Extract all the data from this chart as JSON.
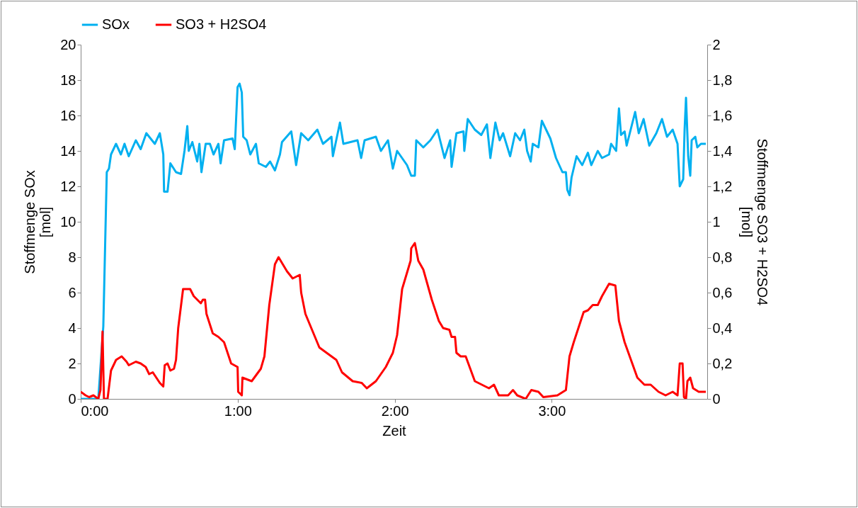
{
  "chart_data": {
    "type": "line",
    "xlabel": "Zeit",
    "ylabel": "Stoffmenge   SOx\n[mol]",
    "y2label": "Stoffmenge   SO3 + H2SO4\n[mol]",
    "legend": "top",
    "grid": false,
    "xlim": [
      0,
      3.99
    ],
    "xticks": [
      {
        "value": 0,
        "label": "0:00"
      },
      {
        "value": 1,
        "label": "1:00"
      },
      {
        "value": 2,
        "label": "2:00"
      },
      {
        "value": 3,
        "label": "3:00"
      }
    ],
    "ylim": [
      0,
      20
    ],
    "yticks": [
      0,
      2,
      4,
      6,
      8,
      10,
      12,
      14,
      16,
      18,
      20
    ],
    "y2lim": [
      0,
      2
    ],
    "y2ticks": [
      0,
      {
        "value": 0.2,
        "label": "0,2"
      },
      {
        "value": 0.4,
        "label": "0,4"
      },
      {
        "value": 0.6,
        "label": "0,6"
      },
      {
        "value": 0.8,
        "label": "0,8"
      },
      1,
      {
        "value": 1.2,
        "label": "1,2"
      },
      {
        "value": 1.4,
        "label": "1,4"
      },
      {
        "value": 1.6,
        "label": "1,6"
      },
      {
        "value": 1.8,
        "label": "1,8"
      },
      2
    ],
    "series": [
      {
        "name": "SOx",
        "color": "#00b0f0",
        "x": [
          0,
          0.112,
          0.144,
          0.166,
          0.18,
          0.193,
          0.225,
          0.256,
          0.279,
          0.306,
          0.351,
          0.382,
          0.418,
          0.472,
          0.504,
          0.526,
          0.531,
          0.553,
          0.571,
          0.607,
          0.639,
          0.661,
          0.679,
          0.688,
          0.711,
          0.742,
          0.756,
          0.769,
          0.796,
          0.823,
          0.846,
          0.877,
          0.891,
          0.913,
          0.967,
          0.981,
          0.999,
          1.012,
          1.026,
          1.035,
          1.057,
          1.08,
          1.116,
          1.134,
          1.179,
          1.206,
          1.237,
          1.269,
          1.282,
          1.341,
          1.372,
          1.404,
          1.449,
          1.507,
          1.543,
          1.597,
          1.606,
          1.651,
          1.673,
          1.763,
          1.786,
          1.808,
          1.88,
          1.912,
          1.957,
          1.988,
          2.015,
          2.078,
          2.105,
          2.128,
          2.137,
          2.182,
          2.227,
          2.272,
          2.317,
          2.353,
          2.362,
          2.393,
          2.438,
          2.443,
          2.465,
          2.51,
          2.551,
          2.587,
          2.609,
          2.641,
          2.668,
          2.69,
          2.735,
          2.767,
          2.798,
          2.825,
          2.843,
          2.866,
          2.879,
          2.915,
          2.937,
          2.991,
          3.027,
          3.068,
          3.09,
          3.099,
          3.113,
          3.126,
          3.158,
          3.194,
          3.23,
          3.252,
          3.293,
          3.32,
          3.365,
          3.378,
          3.41,
          3.428,
          3.441,
          3.464,
          3.477,
          3.531,
          3.554,
          3.585,
          3.621,
          3.666,
          3.702,
          3.734,
          3.77,
          3.801,
          3.815,
          3.837,
          3.846,
          3.855,
          3.869,
          3.882,
          3.891,
          3.914,
          3.927,
          3.95,
          3.981
        ],
        "values": [
          0,
          0,
          4.1,
          12.8,
          13,
          13.8,
          14.4,
          13.8,
          14.4,
          13.7,
          14.6,
          14.1,
          15,
          14.4,
          15,
          13.8,
          11.7,
          11.7,
          13.3,
          12.8,
          12.7,
          14,
          15.4,
          14,
          14.5,
          13.4,
          14.4,
          12.8,
          14.4,
          14.4,
          13.8,
          14.4,
          13.3,
          14.6,
          14.7,
          14.1,
          17.6,
          17.8,
          17.3,
          14.8,
          14.6,
          13.8,
          14.4,
          13.3,
          13.1,
          13.4,
          12.9,
          13.8,
          14.5,
          15.1,
          13.2,
          15,
          14.6,
          15.2,
          14.4,
          14.8,
          13.7,
          15.6,
          14.4,
          14.6,
          13.6,
          14.6,
          14.8,
          14,
          14.6,
          13,
          14,
          13.2,
          12.6,
          12.6,
          14.6,
          14.2,
          14.6,
          15.2,
          13.6,
          14.6,
          13.1,
          15,
          15.1,
          14,
          15.8,
          15.2,
          14.9,
          15.5,
          13.6,
          15.6,
          14.6,
          15,
          13.7,
          15,
          14.6,
          15.2,
          14,
          13.4,
          14.4,
          14.2,
          15.7,
          14.7,
          13.6,
          12.8,
          12.8,
          11.8,
          11.5,
          12.5,
          13.7,
          13.2,
          13.9,
          13.2,
          14,
          13.6,
          13.8,
          14.4,
          14,
          16.4,
          14.9,
          15.1,
          14.3,
          16.2,
          15,
          15.8,
          14.3,
          15,
          15.8,
          14.8,
          15.2,
          14.4,
          12,
          12.4,
          15.2,
          17,
          13.7,
          12.6,
          14.6,
          14.8,
          14.2,
          14.4,
          14.4
        ]
      },
      {
        "name": "SO3 + H2SO4",
        "color": "#ff0000",
        "axis": "y2",
        "x": [
          0,
          0.031,
          0.054,
          0.081,
          0.112,
          0.126,
          0.139,
          0.148,
          0.171,
          0.193,
          0.225,
          0.261,
          0.292,
          0.306,
          0.351,
          0.382,
          0.414,
          0.436,
          0.459,
          0.504,
          0.526,
          0.535,
          0.553,
          0.571,
          0.594,
          0.607,
          0.621,
          0.652,
          0.675,
          0.697,
          0.72,
          0.765,
          0.778,
          0.792,
          0.801,
          0.841,
          0.877,
          0.913,
          0.958,
          0.999,
          1.003,
          1.026,
          1.03,
          1.089,
          1.147,
          1.17,
          1.201,
          1.237,
          1.26,
          1.314,
          1.35,
          1.395,
          1.404,
          1.431,
          1.52,
          1.597,
          1.628,
          1.664,
          1.732,
          1.79,
          1.822,
          1.88,
          1.943,
          1.988,
          2.015,
          2.047,
          2.101,
          2.105,
          2.128,
          2.15,
          2.182,
          2.236,
          2.281,
          2.308,
          2.348,
          2.362,
          2.384,
          2.393,
          2.42,
          2.452,
          2.51,
          2.555,
          2.6,
          2.632,
          2.663,
          2.722,
          2.753,
          2.78,
          2.834,
          2.87,
          2.915,
          2.946,
          3.036,
          3.09,
          3.113,
          3.14,
          3.203,
          3.23,
          3.261,
          3.293,
          3.32,
          3.365,
          3.405,
          3.428,
          3.464,
          3.545,
          3.59,
          3.63,
          3.68,
          3.725,
          3.77,
          3.801,
          3.815,
          3.833,
          3.842,
          3.855,
          3.864,
          3.882,
          3.9,
          3.936,
          3.981
        ],
        "values": [
          0.04,
          0.02,
          0.01,
          0.02,
          0,
          0.05,
          0.38,
          0,
          0,
          0.16,
          0.22,
          0.24,
          0.21,
          0.19,
          0.21,
          0.2,
          0.18,
          0.14,
          0.15,
          0.09,
          0.07,
          0.19,
          0.2,
          0.16,
          0.17,
          0.22,
          0.4,
          0.62,
          0.62,
          0.62,
          0.58,
          0.54,
          0.56,
          0.56,
          0.48,
          0.37,
          0.35,
          0.32,
          0.2,
          0.18,
          0.04,
          0.02,
          0.12,
          0.1,
          0.17,
          0.24,
          0.53,
          0.76,
          0.8,
          0.72,
          0.68,
          0.7,
          0.6,
          0.48,
          0.29,
          0.24,
          0.22,
          0.15,
          0.1,
          0.09,
          0.06,
          0.1,
          0.18,
          0.26,
          0.36,
          0.62,
          0.78,
          0.85,
          0.88,
          0.78,
          0.73,
          0.56,
          0.44,
          0.4,
          0.39,
          0.35,
          0.35,
          0.26,
          0.24,
          0.24,
          0.1,
          0.08,
          0.06,
          0.08,
          0.02,
          0.02,
          0.05,
          0.02,
          0,
          0.05,
          0.04,
          0.01,
          0.02,
          0.05,
          0.24,
          0.32,
          0.49,
          0.5,
          0.53,
          0.53,
          0.58,
          0.65,
          0.64,
          0.44,
          0.32,
          0.12,
          0.08,
          0.08,
          0.04,
          0.02,
          0.04,
          0.02,
          0.2,
          0.2,
          0.01,
          0,
          0.1,
          0.12,
          0.06,
          0.04,
          0.04
        ]
      }
    ]
  }
}
